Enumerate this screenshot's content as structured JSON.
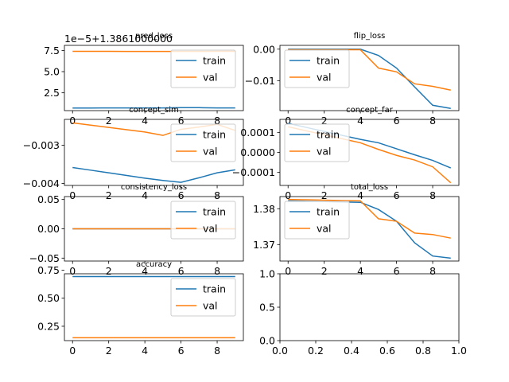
{
  "colors": {
    "train": "#1f77b4",
    "val": "#ff7f0e"
  },
  "chart_data": [
    {
      "type": "line",
      "title": "pred_loss",
      "offset_text": "1e−5+1.3861000000",
      "x": [
        0,
        1,
        2,
        3,
        4,
        5,
        6,
        7,
        8,
        9
      ],
      "xlim": [
        -0.45,
        9.45
      ],
      "ylim": [
        0.4,
        8.1
      ],
      "xticks": [
        {
          "v": 0,
          "label": "0"
        },
        {
          "v": 2,
          "label": "2"
        },
        {
          "v": 4,
          "label": "4"
        },
        {
          "v": 6,
          "label": "6"
        },
        {
          "v": 8,
          "label": "8"
        }
      ],
      "yticks": [
        {
          "v": 2.5,
          "label": "2.5"
        },
        {
          "v": 5.0,
          "label": "5.0"
        },
        {
          "v": 7.5,
          "label": "7.5"
        }
      ],
      "legend": "right",
      "series": [
        {
          "name": "train",
          "color": "#1f77b4",
          "values": [
            0.7,
            0.7,
            0.72,
            0.72,
            0.72,
            0.72,
            0.75,
            0.75,
            0.72,
            0.72
          ]
        },
        {
          "name": "val",
          "color": "#ff7f0e",
          "values": [
            7.4,
            7.4,
            7.4,
            7.38,
            7.38,
            7.38,
            7.38,
            7.38,
            7.4,
            7.4
          ]
        }
      ]
    },
    {
      "type": "line",
      "title": "flip_loss",
      "x": [
        0,
        1,
        2,
        3,
        4,
        5,
        6,
        7,
        8,
        9
      ],
      "xlim": [
        -0.45,
        9.45
      ],
      "ylim": [
        -0.0195,
        0.0012
      ],
      "xticks": [
        {
          "v": 0,
          "label": "0"
        },
        {
          "v": 2,
          "label": "2"
        },
        {
          "v": 4,
          "label": "4"
        },
        {
          "v": 6,
          "label": "6"
        },
        {
          "v": 8,
          "label": "8"
        }
      ],
      "yticks": [
        {
          "v": -0.01,
          "label": "−0.01"
        },
        {
          "v": 0.0,
          "label": "0.00"
        }
      ],
      "legend": "left",
      "series": [
        {
          "name": "train",
          "color": "#1f77b4",
          "values": [
            0.0,
            0.0,
            0.0,
            0.0,
            0.0,
            -0.002,
            -0.006,
            -0.012,
            -0.0178,
            -0.0188
          ]
        },
        {
          "name": "val",
          "color": "#ff7f0e",
          "values": [
            -0.0002,
            -0.0002,
            -0.0002,
            -0.0002,
            -0.0002,
            -0.006,
            -0.0072,
            -0.011,
            -0.0118,
            -0.013
          ]
        }
      ]
    },
    {
      "type": "line",
      "title": "concept_sim",
      "x": [
        0,
        1,
        2,
        3,
        4,
        5,
        6,
        7,
        8,
        9
      ],
      "xlim": [
        -0.45,
        9.45
      ],
      "ylim": [
        -0.00405,
        -0.00232
      ],
      "xticks": [
        {
          "v": 0,
          "label": "0"
        },
        {
          "v": 2,
          "label": "2"
        },
        {
          "v": 4,
          "label": "4"
        },
        {
          "v": 6,
          "label": "6"
        },
        {
          "v": 8,
          "label": "8"
        }
      ],
      "yticks": [
        {
          "v": -0.004,
          "label": "−0.004"
        },
        {
          "v": -0.003,
          "label": "−0.003"
        }
      ],
      "legend": "right",
      "series": [
        {
          "name": "train",
          "color": "#1f77b4",
          "values": [
            -0.00358,
            -0.00365,
            -0.00372,
            -0.00379,
            -0.00386,
            -0.00392,
            -0.00397,
            -0.00385,
            -0.00372,
            -0.00364
          ]
        },
        {
          "name": "val",
          "color": "#ff7f0e",
          "values": [
            -0.00241,
            -0.00247,
            -0.00253,
            -0.00259,
            -0.00265,
            -0.00274,
            -0.00258,
            -0.00252,
            -0.00245,
            -0.00261
          ]
        }
      ]
    },
    {
      "type": "line",
      "title": "concept_far",
      "x": [
        0,
        1,
        2,
        3,
        4,
        5,
        6,
        7,
        8,
        9
      ],
      "xlim": [
        -0.45,
        9.45
      ],
      "ylim": [
        -0.000165,
        0.000165
      ],
      "xticks": [
        {
          "v": 0,
          "label": "0"
        },
        {
          "v": 2,
          "label": "2"
        },
        {
          "v": 4,
          "label": "4"
        },
        {
          "v": 6,
          "label": "6"
        },
        {
          "v": 8,
          "label": "8"
        }
      ],
      "yticks": [
        {
          "v": -0.0001,
          "label": "−0.0001"
        },
        {
          "v": 0.0,
          "label": "0.0000"
        },
        {
          "v": 0.0001,
          "label": "0.0001"
        }
      ],
      "legend": "left",
      "series": [
        {
          "name": "train",
          "color": "#1f77b4",
          "values": [
            0.000145,
            0.000125,
            0.000105,
            8.5e-05,
            6.5e-05,
            4.8e-05,
            1.8e-05,
            -1.2e-05,
            -4e-05,
            -7.8e-05
          ]
        },
        {
          "name": "val",
          "color": "#ff7f0e",
          "values": [
            0.000128,
            0.000108,
            8.8e-05,
            6.8e-05,
            4.8e-05,
            1.5e-05,
            -1.5e-05,
            -3.8e-05,
            -7.2e-05,
            -0.000152
          ]
        }
      ]
    },
    {
      "type": "line",
      "title": "consistency_loss",
      "x": [
        0,
        1,
        2,
        3,
        4,
        5,
        6,
        7,
        8,
        9
      ],
      "xlim": [
        -0.45,
        9.45
      ],
      "ylim": [
        -0.055,
        0.055
      ],
      "xticks": [
        {
          "v": 0,
          "label": "0"
        },
        {
          "v": 2,
          "label": "2"
        },
        {
          "v": 4,
          "label": "4"
        },
        {
          "v": 6,
          "label": "6"
        },
        {
          "v": 8,
          "label": "8"
        }
      ],
      "yticks": [
        {
          "v": -0.05,
          "label": "−0.05"
        },
        {
          "v": 0.0,
          "label": "0.00"
        },
        {
          "v": 0.05,
          "label": "0.05"
        }
      ],
      "legend": "right",
      "series": [
        {
          "name": "train",
          "color": "#1f77b4",
          "values": [
            0,
            0,
            0,
            0,
            0,
            0,
            0,
            0,
            0,
            0
          ]
        },
        {
          "name": "val",
          "color": "#ff7f0e",
          "values": [
            0,
            0,
            0,
            0,
            0,
            0,
            0,
            0,
            0,
            0
          ]
        }
      ]
    },
    {
      "type": "line",
      "title": "total_loss",
      "x": [
        0,
        1,
        2,
        3,
        4,
        5,
        6,
        7,
        8,
        9
      ],
      "xlim": [
        -0.45,
        9.45
      ],
      "ylim": [
        1.3654,
        1.3834
      ],
      "xticks": [
        {
          "v": 0,
          "label": "0"
        },
        {
          "v": 2,
          "label": "2"
        },
        {
          "v": 4,
          "label": "4"
        },
        {
          "v": 6,
          "label": "6"
        },
        {
          "v": 8,
          "label": "8"
        }
      ],
      "yticks": [
        {
          "v": 1.37,
          "label": "1.37"
        },
        {
          "v": 1.38,
          "label": "1.38"
        }
      ],
      "legend": "left",
      "series": [
        {
          "name": "train",
          "color": "#1f77b4",
          "values": [
            1.3822,
            1.3821,
            1.382,
            1.3819,
            1.3818,
            1.3798,
            1.3765,
            1.3705,
            1.3668,
            1.3662
          ]
        },
        {
          "name": "val",
          "color": "#ff7f0e",
          "values": [
            1.3826,
            1.3825,
            1.3824,
            1.3823,
            1.3822,
            1.3772,
            1.3765,
            1.3732,
            1.3728,
            1.3718
          ]
        }
      ]
    },
    {
      "type": "line",
      "title": "accuracy",
      "x": [
        0,
        1,
        2,
        3,
        4,
        5,
        6,
        7,
        8,
        9
      ],
      "xlim": [
        -0.45,
        9.45
      ],
      "ylim": [
        0.122,
        0.718
      ],
      "xticks": [
        {
          "v": 0,
          "label": "0"
        },
        {
          "v": 2,
          "label": "2"
        },
        {
          "v": 4,
          "label": "4"
        },
        {
          "v": 6,
          "label": "6"
        },
        {
          "v": 8,
          "label": "8"
        }
      ],
      "yticks": [
        {
          "v": 0.25,
          "label": "0.25"
        },
        {
          "v": 0.5,
          "label": "0.50"
        },
        {
          "v": 0.75,
          "label": "0.75"
        }
      ],
      "legend": "right",
      "series": [
        {
          "name": "train",
          "color": "#1f77b4",
          "values": [
            0.693,
            0.693,
            0.693,
            0.693,
            0.693,
            0.693,
            0.693,
            0.693,
            0.693,
            0.693
          ]
        },
        {
          "name": "val",
          "color": "#ff7f0e",
          "values": [
            0.148,
            0.148,
            0.148,
            0.148,
            0.148,
            0.148,
            0.148,
            0.148,
            0.148,
            0.148
          ]
        }
      ]
    },
    {
      "type": "line",
      "title": "",
      "x": [],
      "xlim": [
        0.0,
        1.0
      ],
      "ylim": [
        0.0,
        1.0
      ],
      "xticks": [
        {
          "v": 0,
          "label": "0.0"
        },
        {
          "v": 0.2,
          "label": "0.2"
        },
        {
          "v": 0.4,
          "label": "0.4"
        },
        {
          "v": 0.6,
          "label": "0.6"
        },
        {
          "v": 0.8,
          "label": "0.8"
        },
        {
          "v": 1.0,
          "label": "1.0"
        }
      ],
      "yticks": [
        {
          "v": 0,
          "label": "0.0"
        },
        {
          "v": 0.5,
          "label": "0.5"
        },
        {
          "v": 1.0,
          "label": "1.0"
        }
      ],
      "legend": "none",
      "series": []
    }
  ]
}
